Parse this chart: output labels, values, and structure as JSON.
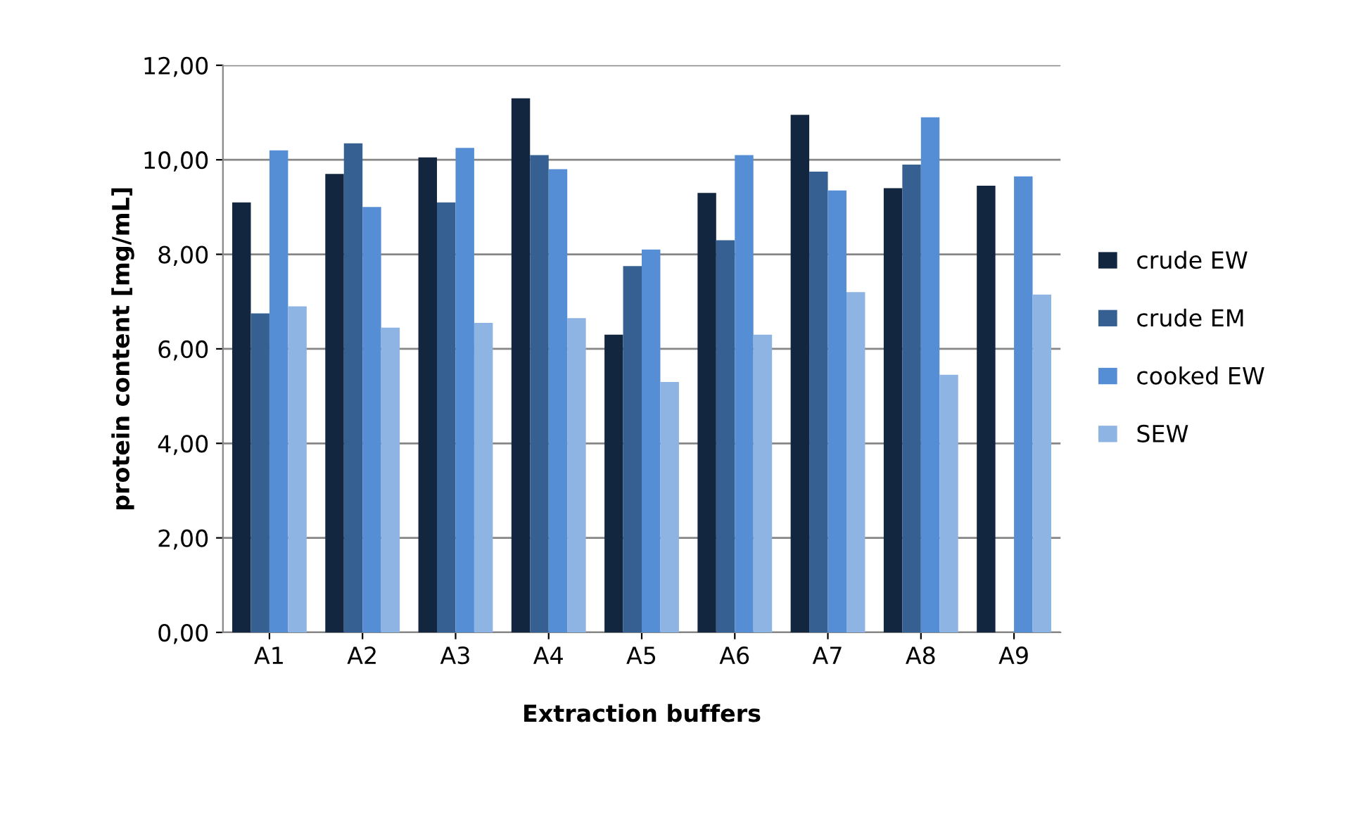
{
  "chart_data": {
    "type": "bar",
    "xlabel": "Extraction buffers",
    "ylabel": "protein content [mg/mL]",
    "categories": [
      "A1",
      "A2",
      "A3",
      "A4",
      "A5",
      "A6",
      "A7",
      "A8",
      "A9"
    ],
    "series": [
      {
        "name": "crude EW",
        "color": "#12263f",
        "values": [
          9.1,
          9.7,
          10.05,
          11.3,
          6.3,
          9.3,
          10.95,
          9.4,
          9.45
        ]
      },
      {
        "name": "crude EM",
        "color": "#366092",
        "values": [
          6.75,
          10.35,
          9.1,
          10.1,
          7.75,
          8.3,
          9.75,
          9.9,
          null
        ]
      },
      {
        "name": "cooked EW",
        "color": "#558ed5",
        "values": [
          10.2,
          9.0,
          10.25,
          9.8,
          8.1,
          10.1,
          9.35,
          10.9,
          9.65
        ]
      },
      {
        "name": "SEW",
        "color": "#8eb4e3",
        "values": [
          6.9,
          6.45,
          6.55,
          6.65,
          5.3,
          6.3,
          7.2,
          5.45,
          7.15
        ]
      }
    ],
    "ylim": [
      0,
      12
    ],
    "yticks": [
      {
        "value": 0,
        "label": "0,00"
      },
      {
        "value": 2,
        "label": "2,00"
      },
      {
        "value": 4,
        "label": "4,00"
      },
      {
        "value": 6,
        "label": "6,00"
      },
      {
        "value": 8,
        "label": "8,00"
      },
      {
        "value": 10,
        "label": "10,00"
      },
      {
        "value": 12,
        "label": "12,00"
      }
    ],
    "grid": "y",
    "legend": "right"
  }
}
